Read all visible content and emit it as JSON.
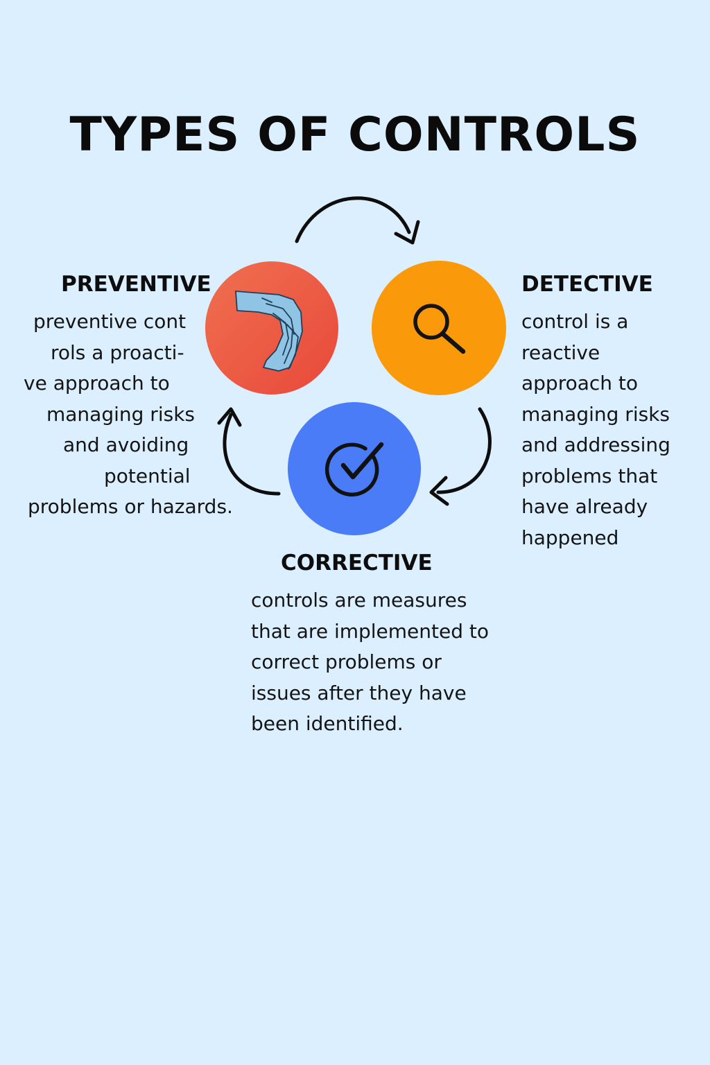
{
  "title": "TYPES OF CONTROLS",
  "nodes": [
    {
      "id": "preventive",
      "label": "PREVENTIVE",
      "color": "#ec5a3d",
      "icon": "hand-icon",
      "description_lines": [
        "preventive cont",
        "rols a proacti-",
        "ve approach to",
        "managing risks",
        "and avoiding",
        "potential",
        "problems or hazards."
      ]
    },
    {
      "id": "detective",
      "label": "DETECTIVE",
      "color": "#fa9a0a",
      "icon": "magnifier-icon",
      "description_lines": [
        "control is a",
        "reactive",
        "approach to",
        "managing risks",
        "and addressing",
        "problems that",
        "have already",
        "happened"
      ]
    },
    {
      "id": "corrective",
      "label": "CORRECTIVE",
      "color": "#4a7cf7",
      "icon": "check-circle-icon",
      "description_lines": [
        "controls are measures",
        "that are implemented to",
        "correct problems or",
        "issues after they have",
        "been identified."
      ]
    }
  ],
  "edges": [
    {
      "from": "preventive",
      "to": "detective"
    },
    {
      "from": "detective",
      "to": "corrective"
    },
    {
      "from": "corrective",
      "to": "preventive"
    }
  ]
}
